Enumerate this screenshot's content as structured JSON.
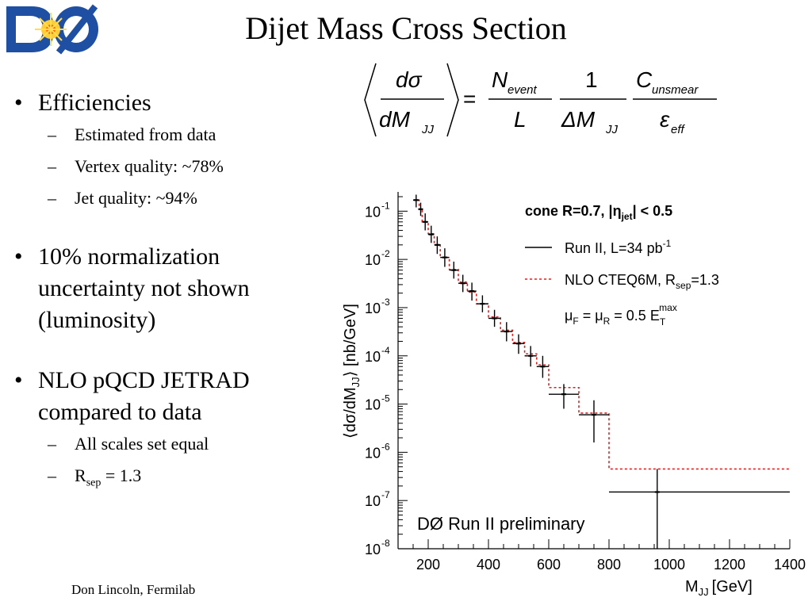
{
  "slide": {
    "title": "Dijet Mass Cross Section",
    "logo_text": "DØ",
    "footer": "Don Lincoln, Fermilab"
  },
  "formula": {
    "lhs_num": "dσ",
    "lhs_den_main": "dM",
    "lhs_den_sub": "JJ",
    "eq": "=",
    "n_main": "N",
    "n_sub": "event",
    "l": "L",
    "one": "1",
    "dm_main": "ΔM",
    "dm_sub": "JJ",
    "c_main": "C",
    "c_sub": "unsmear",
    "eps_main": "ε",
    "eps_sub": "eff"
  },
  "bullets": [
    {
      "text": "Efficiencies",
      "subs": [
        "Estimated from data",
        "Vertex quality: ~78%",
        "Jet quality: ~94%"
      ]
    },
    {
      "text": "10% normalization uncertainty not shown (luminosity)",
      "lines": [
        "10% normalization",
        "uncertainty not shown",
        "(luminosity)"
      ],
      "subs": []
    },
    {
      "text": "NLO pQCD JETRAD compared to data",
      "lines": [
        "NLO pQCD JETRAD",
        "compared to data"
      ],
      "subs": [
        "All scales set equal"
      ],
      "rsep_main": "R",
      "rsep_sub": "sep",
      "rsep_value": "= 1.3"
    }
  ],
  "chart_data": {
    "type": "line",
    "title": "",
    "xlabel": "M",
    "xlabel_sub": "JJ",
    "xlabel_unit": "[GeV]",
    "ylabel": "⟨dσ/dM",
    "ylabel_sub": "JJ",
    "ylabel_unit": "⟩ [nb/GeV]",
    "xlim": [
      100,
      1400
    ],
    "ylim_log10": [
      -8,
      -0.6
    ],
    "log_y": true,
    "grid": false,
    "x_ticks": [
      200,
      400,
      600,
      800,
      1000,
      1200,
      1400
    ],
    "y_tick_exponents": [
      -1,
      -2,
      -3,
      -4,
      -5,
      -6,
      -7,
      -8
    ],
    "y_tick_base": "10",
    "legend_title": "cone R=0.7, |η",
    "legend_title_sub": "jet",
    "legend_title_end": "| < 0.5",
    "legend_entries": [
      {
        "label_main": "Run II, L=34 pb",
        "label_sup": "-1"
      },
      {
        "label_main": "NLO CTEQ6M, R",
        "label_sub": "sep",
        "label_end": "=1.3"
      }
    ],
    "scale_note": "μF = μR = 0.5 ETmax",
    "scale_note_parts": {
      "a": "μ",
      "a_sub": "F",
      "b": " = μ",
      "b_sub": "R",
      "c": " = 0.5 E",
      "c_sub": "T",
      "c_sup": "max"
    },
    "annotation": "DØ Run II preliminary",
    "series": [
      {
        "name": "Run II, L=34 pb-1",
        "color": "#000000",
        "points": [
          {
            "x": 160,
            "xlo": 150,
            "xhi": 170,
            "y": 0.17,
            "ylo": 0.12,
            "yhi": 0.22
          },
          {
            "x": 175,
            "xlo": 170,
            "xhi": 180,
            "y": 0.11,
            "ylo": 0.08,
            "yhi": 0.15
          },
          {
            "x": 190,
            "xlo": 180,
            "xhi": 200,
            "y": 0.06,
            "ylo": 0.04,
            "yhi": 0.09
          },
          {
            "x": 210,
            "xlo": 200,
            "xhi": 220,
            "y": 0.033,
            "ylo": 0.022,
            "yhi": 0.05
          },
          {
            "x": 230,
            "xlo": 220,
            "xhi": 240,
            "y": 0.02,
            "ylo": 0.013,
            "yhi": 0.03
          },
          {
            "x": 255,
            "xlo": 240,
            "xhi": 270,
            "y": 0.011,
            "ylo": 0.007,
            "yhi": 0.017
          },
          {
            "x": 285,
            "xlo": 270,
            "xhi": 300,
            "y": 0.006,
            "ylo": 0.004,
            "yhi": 0.009
          },
          {
            "x": 315,
            "xlo": 300,
            "xhi": 330,
            "y": 0.0032,
            "ylo": 0.0021,
            "yhi": 0.0048
          },
          {
            "x": 345,
            "xlo": 330,
            "xhi": 360,
            "y": 0.0022,
            "ylo": 0.0014,
            "yhi": 0.0033
          },
          {
            "x": 380,
            "xlo": 360,
            "xhi": 400,
            "y": 0.0012,
            "ylo": 0.0008,
            "yhi": 0.0018
          },
          {
            "x": 420,
            "xlo": 400,
            "xhi": 440,
            "y": 0.0006,
            "ylo": 0.0004,
            "yhi": 0.0009
          },
          {
            "x": 460,
            "xlo": 440,
            "xhi": 480,
            "y": 0.00032,
            "ylo": 0.0002,
            "yhi": 0.0005
          },
          {
            "x": 500,
            "xlo": 480,
            "xhi": 520,
            "y": 0.00018,
            "ylo": 0.00011,
            "yhi": 0.00028
          },
          {
            "x": 540,
            "xlo": 520,
            "xhi": 560,
            "y": 0.0001,
            "ylo": 6e-05,
            "yhi": 0.00016
          },
          {
            "x": 580,
            "xlo": 560,
            "xhi": 600,
            "y": 6e-05,
            "ylo": 3.5e-05,
            "yhi": 0.0001
          },
          {
            "x": 650,
            "xlo": 600,
            "xhi": 700,
            "y": 1.6e-05,
            "ylo": 8e-06,
            "yhi": 2.6e-05
          },
          {
            "x": 750,
            "xlo": 700,
            "xhi": 800,
            "y": 6e-06,
            "ylo": 1.6e-06,
            "yhi": 1.2e-05
          },
          {
            "x": 960,
            "xlo": 800,
            "xhi": 1400,
            "y": 1.5e-07,
            "ylo": 1e-08,
            "yhi": 4.5e-07
          }
        ]
      },
      {
        "name": "NLO CTEQ6M, Rsep=1.3",
        "color": "#dd2222",
        "style": "dashed-step",
        "bins": [
          {
            "xlo": 150,
            "xhi": 170,
            "y": 0.17
          },
          {
            "xlo": 170,
            "xhi": 180,
            "y": 0.11
          },
          {
            "xlo": 180,
            "xhi": 200,
            "y": 0.06
          },
          {
            "xlo": 200,
            "xhi": 220,
            "y": 0.034
          },
          {
            "xlo": 220,
            "xhi": 240,
            "y": 0.02
          },
          {
            "xlo": 240,
            "xhi": 270,
            "y": 0.011
          },
          {
            "xlo": 270,
            "xhi": 300,
            "y": 0.0062
          },
          {
            "xlo": 300,
            "xhi": 330,
            "y": 0.0034
          },
          {
            "xlo": 330,
            "xhi": 360,
            "y": 0.0021
          },
          {
            "xlo": 360,
            "xhi": 400,
            "y": 0.0012
          },
          {
            "xlo": 400,
            "xhi": 440,
            "y": 0.00064
          },
          {
            "xlo": 440,
            "xhi": 480,
            "y": 0.00034
          },
          {
            "xlo": 480,
            "xhi": 520,
            "y": 0.00019
          },
          {
            "xlo": 520,
            "xhi": 560,
            "y": 0.00011
          },
          {
            "xlo": 560,
            "xhi": 600,
            "y": 6.5e-05
          },
          {
            "xlo": 600,
            "xhi": 700,
            "y": 2.2e-05
          },
          {
            "xlo": 700,
            "xhi": 800,
            "y": 6.5e-06
          },
          {
            "xlo": 800,
            "xhi": 1400,
            "y": 4.5e-07
          }
        ]
      }
    ]
  }
}
